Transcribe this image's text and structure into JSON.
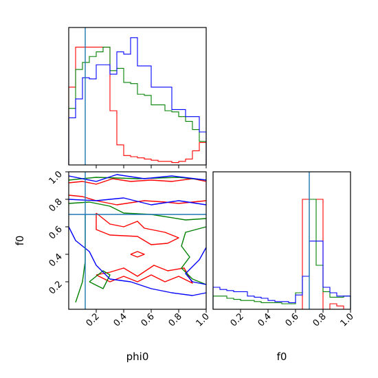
{
  "chart_data": [
    {
      "type": "histogram",
      "panel": "phi0-marginal",
      "xlim": [
        0,
        1
      ],
      "truth": 0.12,
      "bin_edges": [
        0.0,
        0.05,
        0.1,
        0.15,
        0.2,
        0.25,
        0.3,
        0.35,
        0.4,
        0.45,
        0.5,
        0.55,
        0.6,
        0.65,
        0.7,
        0.75,
        0.8,
        0.85,
        0.9,
        0.95,
        1.0
      ],
      "series": [
        {
          "name": "",
          "color": "#ff0000",
          "values": [
            0.66,
            1.0,
            1.0,
            1.0,
            1.0,
            1.0,
            0.46,
            0.17,
            0.08,
            0.07,
            0.06,
            0.05,
            0.04,
            0.03,
            0.03,
            0.02,
            0.03,
            0.05,
            0.12,
            0.19
          ]
        },
        {
          "name": "",
          "color": "#008000",
          "values": [
            0.48,
            0.81,
            0.87,
            0.92,
            0.96,
            1.0,
            0.8,
            0.82,
            0.7,
            0.69,
            0.6,
            0.59,
            0.51,
            0.51,
            0.46,
            0.45,
            0.41,
            0.37,
            0.3,
            0.2
          ]
        },
        {
          "name": "",
          "color": "#0000ff",
          "values": [
            0.4,
            0.56,
            0.74,
            0.73,
            0.85,
            0.85,
            0.77,
            0.96,
            0.94,
            1.08,
            0.84,
            0.84,
            0.66,
            0.66,
            0.66,
            0.47,
            0.47,
            0.41,
            0.41,
            0.28
          ]
        }
      ]
    },
    {
      "type": "contour",
      "panel": "phi0-f0-joint",
      "xlabel": "phi0",
      "ylabel": "f0",
      "xlim": [
        0,
        1
      ],
      "ylim": [
        0,
        1
      ],
      "x_ticks": [
        "0.2",
        "0.4",
        "0.6",
        "0.8",
        "1.0"
      ],
      "y_ticks": [
        "0.2",
        "0.4",
        "0.6",
        "0.8",
        "1.0"
      ],
      "truth": {
        "x": 0.12,
        "y": 0.69
      },
      "series": [
        {
          "name": "",
          "color": "#ff0000",
          "contours": [
            [
              [
                0.0,
                0.92
              ],
              [
                0.1,
                0.93
              ],
              [
                0.2,
                0.91
              ],
              [
                0.32,
                0.95
              ],
              [
                0.45,
                0.93
              ],
              [
                0.6,
                0.94
              ],
              [
                0.75,
                0.93
              ],
              [
                0.9,
                0.95
              ],
              [
                1.0,
                0.93
              ]
            ],
            [
              [
                0.0,
                0.83
              ],
              [
                0.1,
                0.82
              ],
              [
                0.2,
                0.79
              ],
              [
                0.35,
                0.76
              ],
              [
                0.55,
                0.79
              ],
              [
                0.7,
                0.78
              ],
              [
                0.8,
                0.77
              ],
              [
                1.0,
                0.79
              ]
            ],
            [
              [
                0.2,
                0.7
              ],
              [
                0.3,
                0.62
              ],
              [
                0.4,
                0.6
              ],
              [
                0.5,
                0.64
              ],
              [
                0.55,
                0.59
              ],
              [
                0.7,
                0.56
              ],
              [
                0.8,
                0.52
              ],
              [
                0.72,
                0.48
              ],
              [
                0.6,
                0.47
              ],
              [
                0.5,
                0.53
              ],
              [
                0.3,
                0.54
              ],
              [
                0.2,
                0.58
              ],
              [
                0.2,
                0.7
              ]
            ],
            [
              [
                0.2,
                0.25
              ],
              [
                0.3,
                0.2
              ],
              [
                0.4,
                0.24
              ],
              [
                0.5,
                0.2
              ],
              [
                0.6,
                0.25
              ],
              [
                0.7,
                0.2
              ],
              [
                0.8,
                0.24
              ],
              [
                0.9,
                0.19
              ],
              [
                0.84,
                0.3
              ],
              [
                0.72,
                0.28
              ],
              [
                0.62,
                0.32
              ],
              [
                0.5,
                0.24
              ],
              [
                0.4,
                0.3
              ],
              [
                0.3,
                0.27
              ],
              [
                0.2,
                0.25
              ]
            ],
            [
              [
                0.45,
                0.4
              ],
              [
                0.5,
                0.38
              ],
              [
                0.55,
                0.4
              ],
              [
                0.5,
                0.42
              ],
              [
                0.45,
                0.4
              ]
            ]
          ]
        },
        {
          "name": "",
          "color": "#008000",
          "contours": [
            [
              [
                0.0,
                0.94
              ],
              [
                0.2,
                0.96
              ],
              [
                0.5,
                0.95
              ],
              [
                0.8,
                0.96
              ],
              [
                1.0,
                0.94
              ]
            ],
            [
              [
                0.0,
                0.77
              ],
              [
                0.15,
                0.78
              ],
              [
                0.3,
                0.75
              ],
              [
                0.4,
                0.7
              ],
              [
                0.6,
                0.69
              ],
              [
                0.85,
                0.65
              ],
              [
                1.0,
                0.66
              ]
            ],
            [
              [
                1.0,
                0.6
              ],
              [
                0.85,
                0.56
              ],
              [
                0.82,
                0.46
              ],
              [
                0.88,
                0.38
              ],
              [
                0.82,
                0.3
              ],
              [
                0.9,
                0.22
              ],
              [
                1.0,
                0.18
              ]
            ],
            [
              [
                0.12,
                0.69
              ],
              [
                0.12,
                0.35
              ],
              [
                0.1,
                0.2
              ],
              [
                0.05,
                0.05
              ]
            ],
            [
              [
                0.15,
                0.2
              ],
              [
                0.25,
                0.15
              ],
              [
                0.3,
                0.25
              ],
              [
                0.25,
                0.28
              ],
              [
                0.15,
                0.2
              ]
            ]
          ]
        },
        {
          "name": "",
          "color": "#0000ff",
          "contours": [
            [
              [
                0.0,
                0.97
              ],
              [
                0.2,
                0.93
              ],
              [
                0.35,
                0.98
              ],
              [
                0.55,
                0.95
              ],
              [
                0.75,
                0.97
              ],
              [
                1.0,
                0.94
              ]
            ],
            [
              [
                0.0,
                0.8
              ],
              [
                0.2,
                0.79
              ],
              [
                0.4,
                0.81
              ],
              [
                0.6,
                0.76
              ],
              [
                0.8,
                0.79
              ],
              [
                1.0,
                0.76
              ]
            ],
            [
              [
                0.0,
                0.6
              ],
              [
                0.05,
                0.5
              ],
              [
                0.15,
                0.42
              ],
              [
                0.2,
                0.32
              ],
              [
                0.3,
                0.22
              ],
              [
                0.45,
                0.2
              ],
              [
                0.6,
                0.15
              ],
              [
                0.75,
                0.12
              ],
              [
                0.9,
                0.1
              ],
              [
                1.0,
                0.12
              ]
            ],
            [
              [
                1.0,
                0.45
              ],
              [
                0.95,
                0.36
              ],
              [
                0.85,
                0.26
              ],
              [
                0.9,
                0.2
              ],
              [
                1.0,
                0.18
              ]
            ]
          ]
        }
      ]
    },
    {
      "type": "histogram",
      "panel": "f0-marginal",
      "xlabel": "f0",
      "xlim": [
        0,
        1
      ],
      "x_ticks": [
        "0.2",
        "0.4",
        "0.6",
        "0.8",
        "1.0"
      ],
      "truth": 0.7,
      "bin_edges": [
        0.0,
        0.05,
        0.1,
        0.15,
        0.2,
        0.25,
        0.3,
        0.35,
        0.4,
        0.45,
        0.5,
        0.55,
        0.6,
        0.65,
        0.7,
        0.75,
        0.8,
        0.85,
        0.9,
        0.95,
        1.0
      ],
      "series": [
        {
          "name": "",
          "color": "#ff0000",
          "values": [
            0.0,
            0.0,
            0.0,
            0.0,
            0.0,
            0.0,
            0.0,
            0.0,
            0.0,
            0.0,
            0.0,
            0.0,
            0.0,
            1.0,
            1.0,
            1.0,
            0.0,
            0.05,
            0.03,
            0.0
          ]
        },
        {
          "name": "",
          "color": "#008000",
          "values": [
            0.12,
            0.12,
            0.1,
            0.09,
            0.08,
            0.08,
            0.07,
            0.06,
            0.06,
            0.06,
            0.05,
            0.05,
            0.15,
            0.3,
            1.0,
            0.4,
            0.16,
            0.11,
            0.11,
            0.12
          ]
        },
        {
          "name": "",
          "color": "#0000ff",
          "values": [
            0.2,
            0.18,
            0.17,
            0.16,
            0.16,
            0.12,
            0.11,
            0.1,
            0.08,
            0.07,
            0.07,
            0.06,
            0.13,
            0.3,
            0.62,
            0.62,
            0.2,
            0.15,
            0.12,
            0.12
          ]
        }
      ]
    }
  ]
}
